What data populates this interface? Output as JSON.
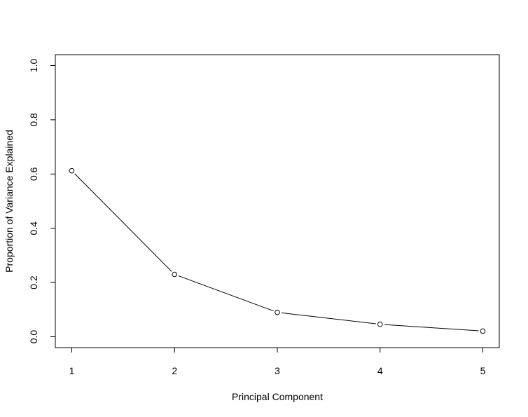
{
  "chart_data": {
    "type": "line",
    "title": "",
    "xlabel": "Principal Component",
    "ylabel": "Proportion of Variance Explained",
    "x": [
      1,
      2,
      3,
      4,
      5
    ],
    "xticks": [
      "1",
      "2",
      "3",
      "4",
      "5"
    ],
    "yticks": [
      "0.0",
      "0.2",
      "0.4",
      "0.6",
      "0.8",
      "1.0"
    ],
    "series": [
      {
        "values": [
          0.612,
          0.23,
          0.09,
          0.046,
          0.021
        ]
      }
    ],
    "xlim": [
      0.84,
      5.16
    ],
    "ylim": [
      -0.04,
      1.04
    ],
    "marker": "open-circle",
    "grid": false,
    "line_color": "#000000"
  }
}
